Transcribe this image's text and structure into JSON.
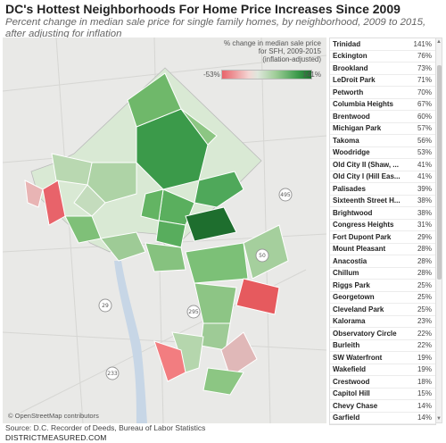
{
  "header": {
    "title": "DC's Hottest Neighborhoods For Home Price Increases Since 2009",
    "subtitle": "Percent change in median sale price for single family homes, by neighborhood, 2009 to 2015, after adjusting for inflation"
  },
  "legend": {
    "line1": "% change in median sale price",
    "line2": "for SFH, 2009-2015",
    "line3": "(inflation-adjusted)",
    "min": "-53%",
    "max": "141%",
    "color_low": "#e8636a",
    "color_high": "#1e6e2e"
  },
  "map": {
    "credit": "© OpenStreetMap contributors",
    "route_labels": [
      "495",
      "295",
      "233",
      "50",
      "29"
    ]
  },
  "footer": {
    "source": "Source: D.C. Recorder of Deeds, Bureau of Labor Statistics",
    "site": "DISTRICTMEASURED.COM"
  },
  "neighborhoods": [
    {
      "name": "Trinidad",
      "value": "141%"
    },
    {
      "name": "Eckington",
      "value": "76%"
    },
    {
      "name": "Brookland",
      "value": "73%"
    },
    {
      "name": "LeDroit Park",
      "value": "71%"
    },
    {
      "name": "Petworth",
      "value": "70%"
    },
    {
      "name": "Columbia Heights",
      "value": "67%"
    },
    {
      "name": "Brentwood",
      "value": "60%"
    },
    {
      "name": "Michigan Park",
      "value": "57%"
    },
    {
      "name": "Takoma",
      "value": "56%"
    },
    {
      "name": "Woodridge",
      "value": "53%"
    },
    {
      "name": "Old City II (Shaw, ...",
      "value": "41%"
    },
    {
      "name": "Old City I (Hill Eas...",
      "value": "41%"
    },
    {
      "name": "Palisades",
      "value": "39%"
    },
    {
      "name": "Sixteenth Street H...",
      "value": "38%"
    },
    {
      "name": "Brightwood",
      "value": "38%"
    },
    {
      "name": "Congress Heights",
      "value": "31%"
    },
    {
      "name": "Fort Dupont Park",
      "value": "29%"
    },
    {
      "name": "Mount Pleasant",
      "value": "28%"
    },
    {
      "name": "Anacostia",
      "value": "28%"
    },
    {
      "name": "Chillum",
      "value": "28%"
    },
    {
      "name": "Riggs Park",
      "value": "25%"
    },
    {
      "name": "Georgetown",
      "value": "25%"
    },
    {
      "name": "Cleveland Park",
      "value": "25%"
    },
    {
      "name": "Kalorama",
      "value": "23%"
    },
    {
      "name": "Observatory Circle",
      "value": "22%"
    },
    {
      "name": "Burleith",
      "value": "22%"
    },
    {
      "name": "SW Waterfront",
      "value": "19%"
    },
    {
      "name": "Wakefield",
      "value": "19%"
    },
    {
      "name": "Crestwood",
      "value": "18%"
    },
    {
      "name": "Capitol Hill",
      "value": "15%"
    },
    {
      "name": "Chevy Chase",
      "value": "14%"
    },
    {
      "name": "Garfield",
      "value": "14%"
    }
  ]
}
